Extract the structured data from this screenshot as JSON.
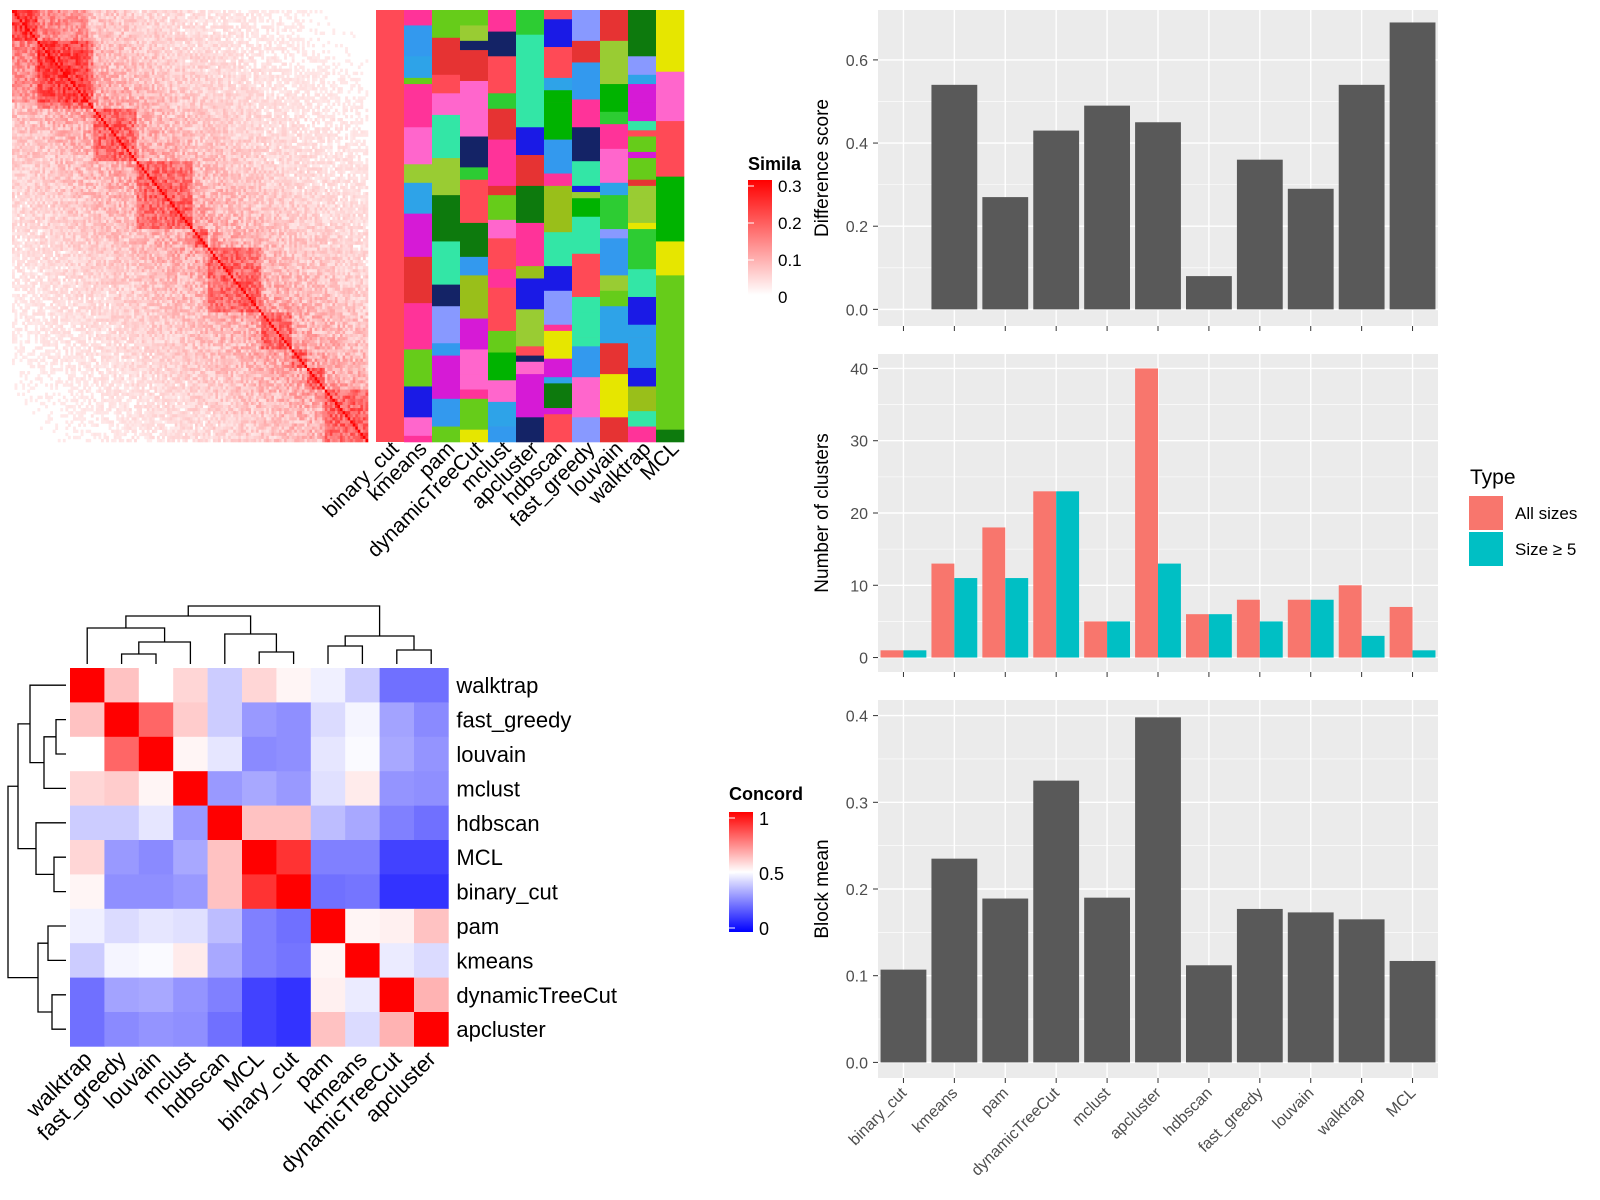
{
  "chart_data": [
    {
      "type": "heatmap",
      "subtype": "similarity-matrix-with-cluster-annotations",
      "legend_title": "Simila",
      "legend_ticks": [
        "0.3",
        "0.2",
        "0.1",
        "0"
      ],
      "legend_range": [
        0,
        0.3
      ],
      "legend_colors": [
        "#ffffff",
        "#ff0000"
      ],
      "annotation_columns": [
        "binary_cut",
        "kmeans",
        "pam",
        "dynamicTreeCut",
        "mclust",
        "apcluster",
        "hdbscan",
        "fast_greedy",
        "louvain",
        "walktrap",
        "MCL"
      ],
      "n_terms": 140
    },
    {
      "type": "heatmap",
      "subtype": "concordance-matrix",
      "legend_title": "Concord",
      "legend_ticks": [
        "1",
        "0.5",
        "0"
      ],
      "legend_range": [
        0,
        1
      ],
      "legend_colors": [
        "#0000ff",
        "#ffffff",
        "#ff0000"
      ],
      "rows": [
        "walktrap",
        "fast_greedy",
        "louvain",
        "mclust",
        "hdbscan",
        "MCL",
        "binary_cut",
        "pam",
        "kmeans",
        "dynamicTreeCut",
        "apcluster"
      ],
      "cols": [
        "walktrap",
        "fast_greedy",
        "louvain",
        "mclust",
        "hdbscan",
        "MCL",
        "binary_cut",
        "pam",
        "kmeans",
        "dynamicTreeCut",
        "apcluster"
      ],
      "values": [
        [
          1.0,
          0.62,
          0.5,
          0.58,
          0.4,
          0.58,
          0.52,
          0.47,
          0.4,
          0.22,
          0.22
        ],
        [
          0.62,
          1.0,
          0.8,
          0.6,
          0.4,
          0.3,
          0.28,
          0.43,
          0.48,
          0.32,
          0.27
        ],
        [
          0.5,
          0.8,
          1.0,
          0.52,
          0.45,
          0.27,
          0.28,
          0.45,
          0.49,
          0.33,
          0.29
        ],
        [
          0.58,
          0.6,
          0.52,
          1.0,
          0.3,
          0.33,
          0.3,
          0.44,
          0.54,
          0.29,
          0.28
        ],
        [
          0.4,
          0.4,
          0.45,
          0.3,
          1.0,
          0.62,
          0.62,
          0.37,
          0.33,
          0.25,
          0.22
        ],
        [
          0.58,
          0.3,
          0.27,
          0.33,
          0.62,
          1.0,
          0.9,
          0.25,
          0.25,
          0.13,
          0.13
        ],
        [
          0.52,
          0.28,
          0.28,
          0.3,
          0.62,
          0.9,
          1.0,
          0.22,
          0.23,
          0.1,
          0.1
        ],
        [
          0.47,
          0.43,
          0.45,
          0.44,
          0.37,
          0.25,
          0.22,
          1.0,
          0.52,
          0.53,
          0.62
        ],
        [
          0.4,
          0.48,
          0.49,
          0.54,
          0.33,
          0.25,
          0.23,
          0.52,
          1.0,
          0.46,
          0.43
        ],
        [
          0.22,
          0.32,
          0.33,
          0.29,
          0.25,
          0.13,
          0.1,
          0.53,
          0.46,
          1.0,
          0.65
        ],
        [
          0.22,
          0.27,
          0.29,
          0.28,
          0.22,
          0.13,
          0.1,
          0.62,
          0.43,
          0.65,
          1.0
        ]
      ]
    },
    {
      "type": "bar",
      "categories": [
        "binary_cut",
        "kmeans",
        "pam",
        "dynamicTreeCut",
        "mclust",
        "apcluster",
        "hdbscan",
        "fast_greedy",
        "louvain",
        "walktrap",
        "MCL"
      ],
      "values": [
        0.0,
        0.54,
        0.27,
        0.43,
        0.49,
        0.45,
        0.08,
        0.36,
        0.29,
        0.54,
        0.69
      ],
      "ylabel": "Difference score",
      "ylim": [
        -0.04,
        0.72
      ],
      "yticks": [
        0.0,
        0.2,
        0.4,
        0.6
      ],
      "grid": true
    },
    {
      "type": "bar",
      "categories": [
        "binary_cut",
        "kmeans",
        "pam",
        "dynamicTreeCut",
        "mclust",
        "apcluster",
        "hdbscan",
        "fast_greedy",
        "louvain",
        "walktrap",
        "MCL"
      ],
      "series": [
        {
          "name": "All sizes",
          "values": [
            1,
            13,
            18,
            23,
            5,
            40,
            6,
            8,
            8,
            10,
            7
          ]
        },
        {
          "name": "Size ≥ 5",
          "values": [
            1,
            11,
            11,
            23,
            5,
            13,
            6,
            5,
            8,
            3,
            1
          ]
        }
      ],
      "ylabel": "Number of clusters",
      "ylim": [
        -2,
        42
      ],
      "yticks": [
        0,
        10,
        20,
        30,
        40
      ],
      "legend_title": "Type",
      "legend_position": "right",
      "grid": true
    },
    {
      "type": "bar",
      "categories": [
        "binary_cut",
        "kmeans",
        "pam",
        "dynamicTreeCut",
        "mclust",
        "apcluster",
        "hdbscan",
        "fast_greedy",
        "louvain",
        "walktrap",
        "MCL"
      ],
      "values": [
        0.107,
        0.235,
        0.189,
        0.325,
        0.19,
        0.398,
        0.112,
        0.177,
        0.173,
        0.165,
        0.117
      ],
      "ylabel": "Block mean",
      "ylim": [
        -0.018,
        0.418
      ],
      "yticks": [
        0.0,
        0.1,
        0.2,
        0.3,
        0.4
      ],
      "grid": true
    }
  ],
  "colors": {
    "bar_fill": "#595959",
    "panel_bg": "#ebebeb",
    "all_sizes": "#f8766d",
    "size_ge5": "#00bfc4",
    "annotation_bg": "#ff4a56"
  }
}
